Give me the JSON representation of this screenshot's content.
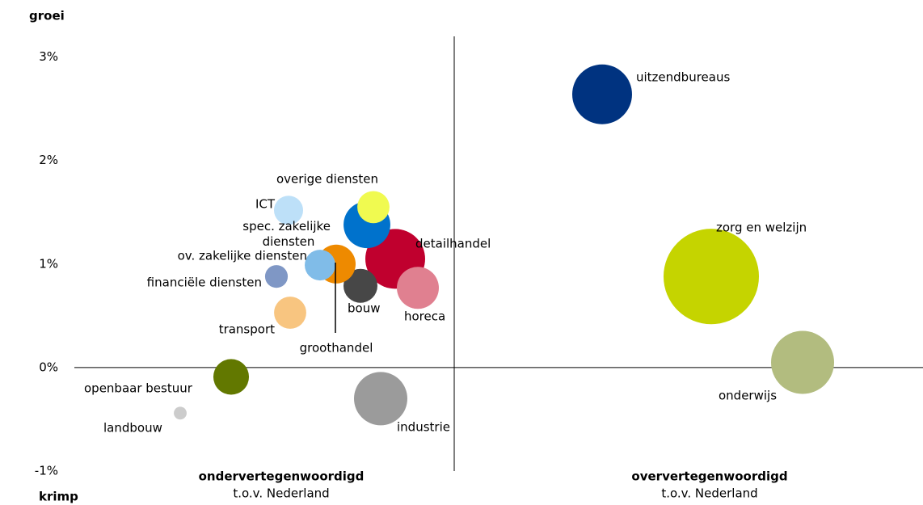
{
  "chart_data": {
    "type": "bubble",
    "y_top_label": "groei",
    "y_bottom_label": "krimp",
    "left_caption": "ondervertegenwoordigd",
    "left_subcaption": "t.o.v. Nederland",
    "right_caption": "oververtegenwoordigd",
    "right_subcaption": "t.o.v. Nederland",
    "labels": [
      "uitzendbureaus",
      "zorg en welzijn",
      "onderwijs",
      "industrie",
      "detailhandel",
      "horeca",
      "bouw",
      "groothandel",
      "ov. zakelijke diensten",
      "spec. zakelijke diensten",
      "overige diensten",
      "ICT",
      "financiële diensten",
      "transport",
      "openbaar bestuur",
      "landbouw"
    ],
    "x": [
      18.3,
      31.8,
      43.1,
      -9.1,
      -7.3,
      -4.5,
      -11.6,
      -14.6,
      -16.6,
      -10.8,
      -10.0,
      -20.5,
      -22.0,
      -20.3,
      -27.6,
      -33.9
    ],
    "values": [
      2.64,
      0.88,
      0.05,
      -0.3,
      1.05,
      0.77,
      0.79,
      1.0,
      0.99,
      1.38,
      1.55,
      1.52,
      0.88,
      0.53,
      -0.09,
      -0.44
    ],
    "sizes": [
      152,
      387,
      169,
      121,
      152,
      75,
      49,
      64,
      40,
      93,
      44,
      36,
      22,
      44,
      54,
      7
    ],
    "colors": [
      "#003380",
      "#c5d400",
      "#b2bc7f",
      "#9b9b9b",
      "#c0002e",
      "#e08090",
      "#474747",
      "#ee8a00",
      "#80bce8",
      "#0072cc",
      "#f0fa50",
      "#bde0f8",
      "#7f97c5",
      "#f8c580",
      "#627800",
      "#cccccc"
    ],
    "xlim": [
      -47,
      58
    ],
    "ylim": [
      -1,
      3.2
    ],
    "yticks": [
      {
        "value": -1,
        "label": "-1%"
      },
      {
        "value": 0,
        "label": "0%"
      },
      {
        "value": 1,
        "label": "1%"
      },
      {
        "value": 2,
        "label": "2%"
      },
      {
        "value": 3,
        "label": "3%"
      }
    ]
  }
}
